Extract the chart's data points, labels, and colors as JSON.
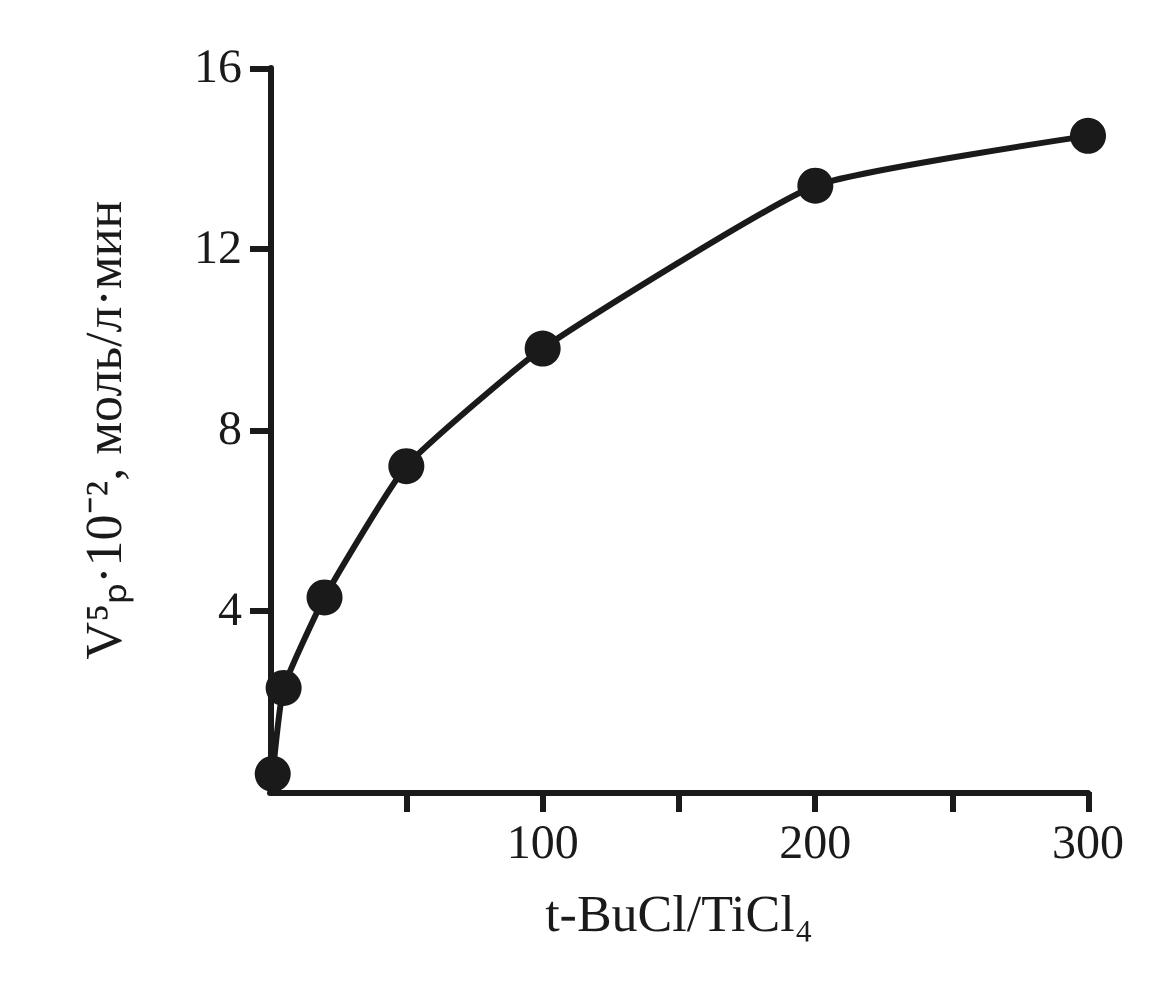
{
  "chart_data": {
    "type": "line",
    "xlabel": "t-BuCl/TiCl₄",
    "ylabel": "V⁵ₚ·10⁻², моль/л·мин",
    "x": [
      1,
      5,
      20,
      50,
      100,
      200,
      300
    ],
    "series": [
      {
        "color": "#1a1a1a",
        "values": [
          0.4,
          2.3,
          4.3,
          7.2,
          9.8,
          13.4,
          14.5
        ]
      }
    ],
    "xlim": [
      0,
      300
    ],
    "xticks": [
      {
        "value": 50,
        "label": null
      },
      100,
      {
        "value": 150,
        "label": null
      },
      200,
      {
        "value": 250,
        "label": null
      },
      300
    ],
    "ylim": [
      0,
      16
    ],
    "yticks": [
      4,
      8,
      12,
      16
    ],
    "grid": false,
    "marker": "circle",
    "line_style": "solid"
  }
}
